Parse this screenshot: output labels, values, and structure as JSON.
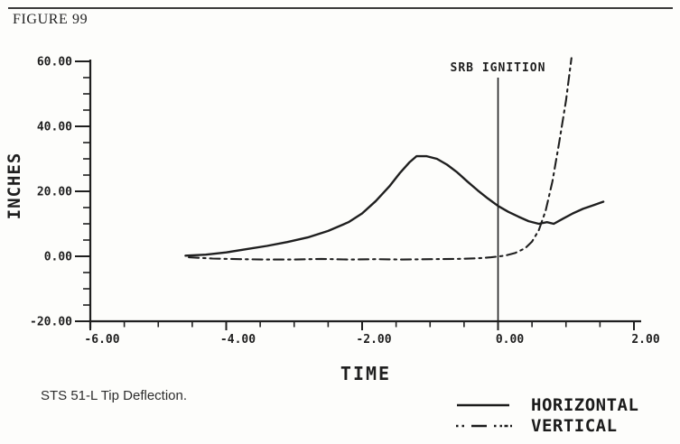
{
  "page": {
    "figure_label": "FIGURE 99",
    "caption": "STS 51-L Tip Deflection."
  },
  "chart_data": {
    "type": "line",
    "title": "",
    "xlabel": "TIME",
    "ylabel": "INCHES",
    "xlim": [
      -6,
      2
    ],
    "ylim": [
      -20,
      60
    ],
    "grid": false,
    "legend_position": "bottom-right",
    "x_ticks": {
      "values": [
        -6,
        -4,
        -2,
        0,
        2
      ],
      "labels": [
        "-6.00",
        "-4.00",
        "-2.00",
        "0.00",
        "2.00"
      ],
      "minor_step": 0.5
    },
    "y_ticks": {
      "values": [
        -20,
        0,
        20,
        40,
        60
      ],
      "labels": [
        "-20.00",
        "0.00",
        "20.00",
        "40.00",
        "60.00"
      ],
      "minor_step": 5
    },
    "annotation": {
      "label": "SRB IGNITION",
      "x": 0.0
    },
    "legend": [
      {
        "name": "HORIZONTAL",
        "style": "solid"
      },
      {
        "name": "VERTICAL",
        "style": "dash-dot"
      }
    ],
    "series": [
      {
        "name": "HORIZONTAL",
        "style": "solid",
        "points": [
          [
            -4.6,
            0.2
          ],
          [
            -4.3,
            0.5
          ],
          [
            -4.0,
            1.2
          ],
          [
            -3.7,
            2.2
          ],
          [
            -3.4,
            3.2
          ],
          [
            -3.1,
            4.4
          ],
          [
            -2.8,
            5.8
          ],
          [
            -2.5,
            7.8
          ],
          [
            -2.2,
            10.5
          ],
          [
            -2.0,
            13.2
          ],
          [
            -1.8,
            17.0
          ],
          [
            -1.6,
            21.5
          ],
          [
            -1.45,
            25.5
          ],
          [
            -1.3,
            29.0
          ],
          [
            -1.2,
            30.8
          ],
          [
            -1.05,
            30.8
          ],
          [
            -0.9,
            30.0
          ],
          [
            -0.75,
            28.2
          ],
          [
            -0.6,
            25.8
          ],
          [
            -0.45,
            23.0
          ],
          [
            -0.3,
            20.3
          ],
          [
            -0.15,
            17.8
          ],
          [
            0.0,
            15.5
          ],
          [
            0.15,
            13.7
          ],
          [
            0.3,
            12.2
          ],
          [
            0.45,
            10.8
          ],
          [
            0.6,
            10.0
          ],
          [
            0.72,
            10.5
          ],
          [
            0.82,
            10.0
          ],
          [
            0.95,
            11.5
          ],
          [
            1.1,
            13.2
          ],
          [
            1.25,
            14.6
          ],
          [
            1.4,
            15.7
          ],
          [
            1.55,
            16.8
          ]
        ]
      },
      {
        "name": "VERTICAL",
        "style": "dash-dot",
        "points": [
          [
            -4.55,
            -0.3
          ],
          [
            -4.2,
            -0.7
          ],
          [
            -3.8,
            -0.9
          ],
          [
            -3.4,
            -1.0
          ],
          [
            -3.0,
            -1.0
          ],
          [
            -2.6,
            -0.8
          ],
          [
            -2.2,
            -1.0
          ],
          [
            -1.8,
            -0.9
          ],
          [
            -1.4,
            -1.0
          ],
          [
            -1.0,
            -0.9
          ],
          [
            -0.6,
            -0.8
          ],
          [
            -0.3,
            -0.6
          ],
          [
            -0.1,
            -0.3
          ],
          [
            0.1,
            0.2
          ],
          [
            0.25,
            1.0
          ],
          [
            0.4,
            2.5
          ],
          [
            0.5,
            4.5
          ],
          [
            0.6,
            8.0
          ],
          [
            0.7,
            14.0
          ],
          [
            0.8,
            23.0
          ],
          [
            0.9,
            35.0
          ],
          [
            1.0,
            48.0
          ],
          [
            1.08,
            61.0
          ]
        ]
      }
    ],
    "colors": {
      "ink": "#1f1f1f",
      "background": "#fdfdfb"
    }
  }
}
